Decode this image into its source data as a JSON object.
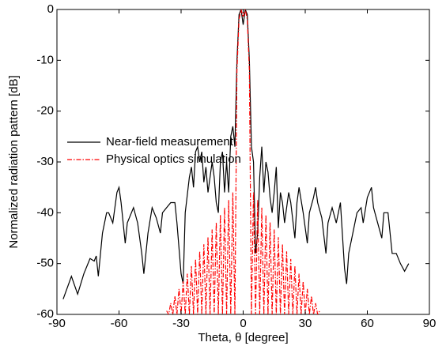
{
  "chart_data": {
    "type": "line",
    "xlabel": "Theta, θ [degree]",
    "ylabel": "Normalized radiation pattern [dB]",
    "xlim": [
      -90,
      90
    ],
    "xticks": [
      -90,
      -60,
      -30,
      0,
      30,
      60,
      90
    ],
    "ylim": [
      -60,
      0
    ],
    "yticks": [
      -60,
      -50,
      -40,
      -30,
      -20,
      -10,
      0
    ],
    "legend": "left",
    "series": [
      {
        "name": "Near-field measurement",
        "color": "#000000",
        "dash": "solid",
        "x": [
          -87,
          -83,
          -80,
          -77,
          -74,
          -72,
          -71,
          -70,
          -68,
          -66,
          -65,
          -63,
          -61,
          -60,
          -59,
          -57,
          -56,
          -54,
          -53,
          -51,
          -49,
          -48,
          -46,
          -44,
          -42,
          -40,
          -39,
          -37,
          -35,
          -33,
          -32,
          -30,
          -29,
          -28,
          -26,
          -25,
          -24,
          -23,
          -22,
          -21,
          -20,
          -19,
          -18,
          -17,
          -15,
          -14,
          -13,
          -12,
          -11,
          -10,
          -9,
          -8,
          -7,
          -6,
          -5,
          -4,
          -3,
          -2,
          -1,
          0,
          1,
          2,
          3,
          4,
          5,
          6,
          7,
          8,
          9,
          10,
          11,
          12,
          13,
          14,
          15,
          16,
          17,
          18,
          19,
          20,
          21,
          22,
          23,
          25,
          26,
          27,
          29,
          31,
          32,
          34,
          35,
          36,
          38,
          40,
          41,
          43,
          45,
          47,
          49,
          50,
          51,
          53,
          55,
          57,
          58,
          60,
          62,
          63,
          65,
          67,
          68,
          70,
          72,
          74,
          76,
          78,
          80
        ],
        "values": [
          -57,
          -52.5,
          -56,
          -52,
          -49,
          -49.5,
          -48.5,
          -52.5,
          -44,
          -40,
          -40,
          -42,
          -36,
          -35,
          -38,
          -46,
          -42,
          -40,
          -39,
          -42,
          -48,
          -52,
          -44,
          -39,
          -41,
          -44,
          -40,
          -39,
          -38,
          -38,
          -42,
          -52,
          -54,
          -40,
          -33,
          -31,
          -35,
          -28,
          -27,
          -30,
          -28,
          -34,
          -31,
          -36,
          -30,
          -33,
          -38,
          -40,
          -30,
          -28,
          -36,
          -30,
          -36,
          -25,
          -23,
          -27,
          -10,
          -1,
          0,
          -3,
          0,
          -1,
          -10,
          -27,
          -30,
          -48,
          -44,
          -33,
          -27,
          -36,
          -30,
          -32,
          -37,
          -40,
          -36,
          -31,
          -43,
          -36,
          -38,
          -42,
          -39,
          -36,
          -38,
          -45,
          -38,
          -35,
          -40,
          -46,
          -40,
          -37,
          -35,
          -38,
          -41,
          -48,
          -42,
          -39,
          -42,
          -38,
          -51,
          -54,
          -48,
          -44,
          -40,
          -39,
          -42,
          -37,
          -35,
          -39,
          -42,
          -45,
          -40,
          -40,
          -48,
          -48,
          -50,
          -51.5,
          -50
        ]
      },
      {
        "name": "Physical optics simulation",
        "color": "#ff0000",
        "dash": "dashdot",
        "x": [
          -37,
          -36,
          -35,
          -34,
          -33,
          -32,
          -31,
          -30,
          -29,
          -28,
          -27,
          -26,
          -25,
          -24,
          -23,
          -22,
          -21,
          -20,
          -19,
          -18,
          -17,
          -16,
          -15,
          -14,
          -13,
          -12,
          -11,
          -10,
          -9,
          -8,
          -7,
          -6,
          -5,
          -4,
          -3,
          -2,
          -1,
          0,
          1,
          2,
          3,
          4,
          5,
          6,
          7,
          8,
          9,
          10,
          11,
          12,
          13,
          14,
          15,
          16,
          17,
          18,
          19,
          20,
          21,
          22,
          23,
          24,
          25,
          26,
          27,
          28,
          29,
          30,
          31,
          32,
          33,
          34,
          35,
          36,
          37
        ],
        "values": [
          -59.3,
          -60,
          -57.8,
          -60,
          -56.4,
          -60,
          -55,
          -60,
          -53.5,
          -60,
          -52,
          -60,
          -50.5,
          -60,
          -49.1,
          -60,
          -47.6,
          -60,
          -46.2,
          -60,
          -44.8,
          -60,
          -43.3,
          -60,
          -41.9,
          -60,
          -40.4,
          -60,
          -39,
          -60,
          -37.5,
          -60,
          -36,
          -60,
          -12,
          -2,
          0,
          -1.5,
          0,
          -2,
          -12,
          -60,
          -36,
          -60,
          -37.5,
          -60,
          -39,
          -60,
          -40.4,
          -60,
          -41.9,
          -60,
          -43.3,
          -60,
          -44.8,
          -60,
          -46.2,
          -60,
          -47.6,
          -60,
          -49.1,
          -60,
          -50.5,
          -60,
          -52,
          -60,
          -53.5,
          -60,
          -55,
          -60,
          -56.4,
          -60,
          -57.8,
          -60,
          -59.3
        ]
      }
    ]
  }
}
